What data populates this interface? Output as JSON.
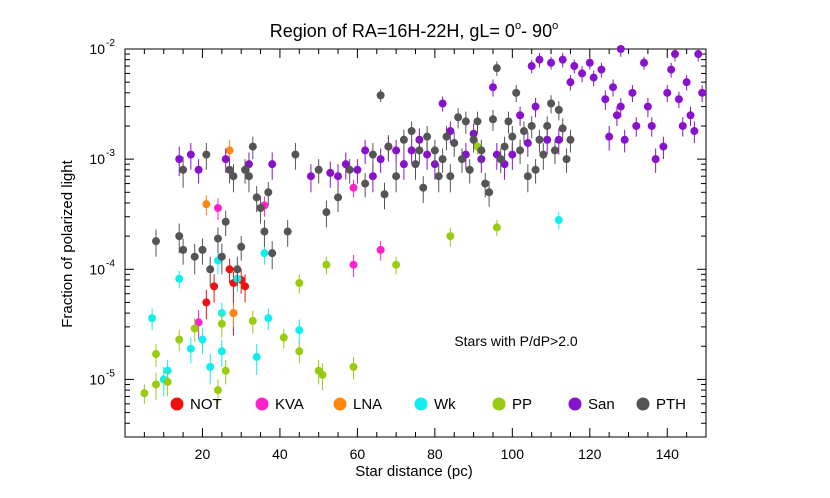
{
  "chart_data": {
    "type": "scatter",
    "title": "Region of RA=16H-22H, gL=  0",
    "title_sup1": "o",
    "title_mid": "- 90",
    "title_sup2": "o",
    "xlabel": "Star distance (pc)",
    "ylabel": "Fraction of polarized light",
    "xlim": [
      0,
      150
    ],
    "ylim": [
      3e-06,
      0.01
    ],
    "yscale": "log",
    "x_ticks": [
      20,
      40,
      60,
      80,
      100,
      120,
      140
    ],
    "x_tick_labels": [
      "20",
      "40",
      "60",
      "80",
      "100",
      "120",
      "140"
    ],
    "y_ticks": [
      1e-05,
      0.0001,
      0.001,
      0.01
    ],
    "y_tick_bases": [
      "10",
      "10",
      "10",
      "10"
    ],
    "y_tick_exps": [
      "-5",
      "-4",
      "-3",
      "-2"
    ],
    "annotation": "Stars with P/dP>2.0",
    "legend_placement": "bottom",
    "series": [
      {
        "name": "NOT",
        "color": "#ee1111",
        "points": [
          [
            21,
            5e-05,
            1.5e-05
          ],
          [
            23,
            7e-05,
            2e-05
          ],
          [
            27,
            0.0001,
            2.5e-05
          ],
          [
            28,
            7.5e-05,
            2e-05
          ],
          [
            30,
            8e-05,
            2e-05
          ],
          [
            31,
            7e-05,
            2e-05
          ],
          [
            28,
            4e-05,
            1.5e-05
          ]
        ]
      },
      {
        "name": "KVA",
        "color": "#ff22cc",
        "points": [
          [
            19,
            3.3e-05,
            1e-05
          ],
          [
            24,
            0.00036,
            8e-05
          ],
          [
            36,
            0.00038,
            8e-05
          ],
          [
            59,
            0.00011,
            2.5e-05
          ],
          [
            59,
            0.00055,
            0.0001
          ],
          [
            66,
            0.00015,
            3e-05
          ]
        ]
      },
      {
        "name": "LNA",
        "color": "#ff8811",
        "points": [
          [
            21,
            0.00039,
            8e-05
          ],
          [
            27,
            0.0012,
            0.0003
          ],
          [
            28,
            4e-05,
            1e-05
          ]
        ]
      },
      {
        "name": "Wk",
        "color": "#11eeee",
        "points": [
          [
            7,
            3.6e-05,
            8e-06
          ],
          [
            10,
            1e-05,
            3e-06
          ],
          [
            11,
            1.2e-05,
            3e-06
          ],
          [
            14,
            8.2e-05,
            1.5e-05
          ],
          [
            17,
            1.9e-05,
            5e-06
          ],
          [
            20,
            2.3e-05,
            6e-06
          ],
          [
            22,
            1.3e-05,
            4e-06
          ],
          [
            24,
            0.00012,
            3e-05
          ],
          [
            25,
            1.8e-05,
            5e-06
          ],
          [
            25,
            4e-05,
            1e-05
          ],
          [
            29,
            8.2e-05,
            2e-05
          ],
          [
            34,
            1.6e-05,
            5e-06
          ],
          [
            36,
            0.00014,
            3e-05
          ],
          [
            37,
            3.6e-05,
            8e-06
          ],
          [
            45,
            2.8e-05,
            7e-06
          ],
          [
            112,
            0.00028,
            5e-05
          ]
        ]
      },
      {
        "name": "PP",
        "color": "#99cc11",
        "points": [
          [
            5,
            7.5e-06,
            1.5e-06
          ],
          [
            8,
            1.7e-05,
            4e-06
          ],
          [
            8,
            9e-06,
            2.5e-06
          ],
          [
            11,
            9.5e-06,
            2.5e-06
          ],
          [
            14,
            2.3e-05,
            5e-06
          ],
          [
            18,
            2.9e-05,
            7e-06
          ],
          [
            24,
            8e-06,
            2e-06
          ],
          [
            25,
            3.2e-05,
            8e-06
          ],
          [
            26,
            1.2e-05,
            3e-06
          ],
          [
            33,
            3.4e-05,
            8e-06
          ],
          [
            41,
            2.4e-05,
            5e-06
          ],
          [
            45,
            1.8e-05,
            4e-06
          ],
          [
            45,
            7.5e-05,
            1.5e-05
          ],
          [
            50,
            1.2e-05,
            3e-06
          ],
          [
            51,
            1.1e-05,
            3e-06
          ],
          [
            52,
            0.00011,
            2e-05
          ],
          [
            59,
            1.3e-05,
            3e-06
          ],
          [
            70,
            0.00011,
            2e-05
          ],
          [
            84,
            0.0002,
            4e-05
          ],
          [
            91,
            0.0013,
            0.0002
          ],
          [
            96,
            0.00024,
            4e-05
          ]
        ]
      },
      {
        "name": "San",
        "color": "#8811cc",
        "points": [
          [
            14,
            0.001,
            0.0003
          ],
          [
            17,
            0.0011,
            0.0003
          ],
          [
            19,
            0.0008,
            0.0002
          ],
          [
            26,
            0.001,
            0.00025
          ],
          [
            32,
            0.0009,
            0.00025
          ],
          [
            38,
            0.0009,
            0.00025
          ],
          [
            48,
            0.0007,
            0.0002
          ],
          [
            53,
            0.00075,
            0.0002
          ],
          [
            55,
            0.0007,
            0.0002
          ],
          [
            57,
            0.0009,
            0.00025
          ],
          [
            60,
            0.0008,
            0.0002
          ],
          [
            62,
            0.0012,
            0.0003
          ],
          [
            64,
            0.0007,
            0.0002
          ],
          [
            66,
            0.001,
            0.00025
          ],
          [
            68,
            0.0013,
            0.00035
          ],
          [
            70,
            0.0012,
            0.0003
          ],
          [
            72,
            0.0009,
            0.00025
          ],
          [
            74,
            0.0012,
            0.0003
          ],
          [
            76,
            0.0015,
            0.0004
          ],
          [
            78,
            0.0011,
            0.0003
          ],
          [
            80,
            0.0009,
            0.00025
          ],
          [
            82,
            0.0032,
            0.0005
          ],
          [
            84,
            0.0018,
            0.0004
          ],
          [
            88,
            0.0011,
            0.0003
          ],
          [
            90,
            0.0017,
            0.0004
          ],
          [
            92,
            0.001,
            0.00025
          ],
          [
            95,
            0.0045,
            0.0008
          ],
          [
            96,
            0.0011,
            0.0003
          ],
          [
            98,
            0.0009,
            0.00025
          ],
          [
            100,
            0.0011,
            0.0003
          ],
          [
            102,
            0.0025,
            0.0005
          ],
          [
            104,
            0.0014,
            0.00035
          ],
          [
            105,
            0.007,
            0.001
          ],
          [
            106,
            0.003,
            0.0006
          ],
          [
            107,
            0.008,
            0.0012
          ],
          [
            109,
            0.0015,
            0.0004
          ],
          [
            110,
            0.0075,
            0.001
          ],
          [
            112,
            0.0015,
            0.0004
          ],
          [
            113,
            0.008,
            0.0012
          ],
          [
            115,
            0.005,
            0.0008
          ],
          [
            116,
            0.007,
            0.001
          ],
          [
            118,
            0.006,
            0.001
          ],
          [
            120,
            0.0075,
            0.001
          ],
          [
            121,
            0.0055,
            0.0009
          ],
          [
            123,
            0.0065,
            0.001
          ],
          [
            124,
            0.0035,
            0.0007
          ],
          [
            125,
            0.0016,
            0.0004
          ],
          [
            126,
            0.0045,
            0.0008
          ],
          [
            127,
            0.0025,
            0.0005
          ],
          [
            128,
            0.01,
            0.0015
          ],
          [
            128,
            0.003,
            0.0006
          ],
          [
            129,
            0.0015,
            0.00035
          ],
          [
            131,
            0.004,
            0.0007
          ],
          [
            132,
            0.002,
            0.0004
          ],
          [
            134,
            0.0075,
            0.001
          ],
          [
            135,
            0.003,
            0.0006
          ],
          [
            136,
            0.002,
            0.0004
          ],
          [
            137,
            0.001,
            0.00025
          ],
          [
            139,
            0.0013,
            0.0003
          ],
          [
            140,
            0.004,
            0.0007
          ],
          [
            141,
            0.0065,
            0.001
          ],
          [
            142,
            0.009,
            0.0013
          ],
          [
            143,
            0.0035,
            0.0006
          ],
          [
            144,
            0.002,
            0.0004
          ],
          [
            145,
            0.005,
            0.0008
          ],
          [
            146,
            0.0025,
            0.0005
          ],
          [
            147,
            0.0018,
            0.0004
          ],
          [
            148,
            0.009,
            0.0013
          ],
          [
            149,
            0.004,
            0.0007
          ]
        ]
      },
      {
        "name": "PTH",
        "color": "#555555",
        "points": [
          [
            8,
            0.00018,
            5e-05
          ],
          [
            14,
            0.0002,
            6e-05
          ],
          [
            15,
            0.00015,
            4e-05
          ],
          [
            15,
            0.0008,
            0.00025
          ],
          [
            18,
            0.00013,
            4e-05
          ],
          [
            20,
            0.00015,
            4e-05
          ],
          [
            21,
            0.0011,
            0.0003
          ],
          [
            22,
            0.0001,
            3e-05
          ],
          [
            24,
            0.00019,
            5e-05
          ],
          [
            25,
            0.00013,
            4e-05
          ],
          [
            26,
            0.00027,
            7e-05
          ],
          [
            27,
            0.0008,
            0.0002
          ],
          [
            28,
            0.0007,
            0.0002
          ],
          [
            29,
            0.0001,
            3e-05
          ],
          [
            30,
            0.00016,
            4e-05
          ],
          [
            31,
            0.0008,
            0.0002
          ],
          [
            32,
            0.0007,
            0.0002
          ],
          [
            33,
            0.0013,
            0.0003
          ],
          [
            34,
            0.00045,
            0.00012
          ],
          [
            35,
            0.00036,
            0.0001
          ],
          [
            36,
            0.00022,
            6e-05
          ],
          [
            37,
            0.0005,
            0.00012
          ],
          [
            38,
            0.00014,
            4e-05
          ],
          [
            42,
            0.00022,
            6e-05
          ],
          [
            44,
            0.0011,
            0.0003
          ],
          [
            50,
            0.0008,
            0.0002
          ],
          [
            52,
            0.00033,
            9e-05
          ],
          [
            55,
            0.00045,
            0.00012
          ],
          [
            58,
            0.0008,
            0.0002
          ],
          [
            62,
            0.0006,
            0.00015
          ],
          [
            64,
            0.0011,
            0.0003
          ],
          [
            66,
            0.0038,
            0.0005
          ],
          [
            67,
            0.00048,
            0.00013
          ],
          [
            68,
            0.0013,
            0.0003
          ],
          [
            70,
            0.0007,
            0.0002
          ],
          [
            72,
            0.0015,
            0.00035
          ],
          [
            74,
            0.0018,
            0.0004
          ],
          [
            75,
            0.0009,
            0.00025
          ],
          [
            76,
            0.0012,
            0.0003
          ],
          [
            77,
            0.00055,
            0.00015
          ],
          [
            78,
            0.0016,
            0.0004
          ],
          [
            80,
            0.0012,
            0.0003
          ],
          [
            81,
            0.0007,
            0.0002
          ],
          [
            82,
            0.001,
            0.00025
          ],
          [
            83,
            0.0016,
            0.0004
          ],
          [
            84,
            0.0007,
            0.0002
          ],
          [
            85,
            0.0014,
            0.00035
          ],
          [
            86,
            0.0024,
            0.0005
          ],
          [
            87,
            0.001,
            0.00025
          ],
          [
            88,
            0.0022,
            0.0005
          ],
          [
            89,
            0.0008,
            0.0002
          ],
          [
            90,
            0.0015,
            0.00035
          ],
          [
            91,
            0.0022,
            0.0005
          ],
          [
            92,
            0.0012,
            0.0003
          ],
          [
            93,
            0.0006,
            0.00015
          ],
          [
            94,
            0.0005,
            0.00013
          ],
          [
            95,
            0.0023,
            0.0005
          ],
          [
            96,
            0.0067,
            0.001
          ],
          [
            97,
            0.001,
            0.00025
          ],
          [
            98,
            0.0013,
            0.0003
          ],
          [
            99,
            0.0022,
            0.0005
          ],
          [
            100,
            0.0016,
            0.0004
          ],
          [
            101,
            0.004,
            0.0007
          ],
          [
            102,
            0.0012,
            0.0003
          ],
          [
            103,
            0.0018,
            0.0004
          ],
          [
            104,
            0.0007,
            0.0002
          ],
          [
            105,
            0.002,
            0.00045
          ],
          [
            106,
            0.0008,
            0.0002
          ],
          [
            107,
            0.0015,
            0.00035
          ],
          [
            108,
            0.0011,
            0.0003
          ],
          [
            109,
            0.002,
            0.00045
          ],
          [
            110,
            0.0032,
            0.0006
          ],
          [
            111,
            0.0012,
            0.0003
          ],
          [
            112,
            0.0028,
            0.00055
          ],
          [
            113,
            0.0019,
            0.00045
          ],
          [
            114,
            0.001,
            0.00025
          ],
          [
            115,
            0.0015,
            0.00035
          ]
        ]
      }
    ]
  }
}
